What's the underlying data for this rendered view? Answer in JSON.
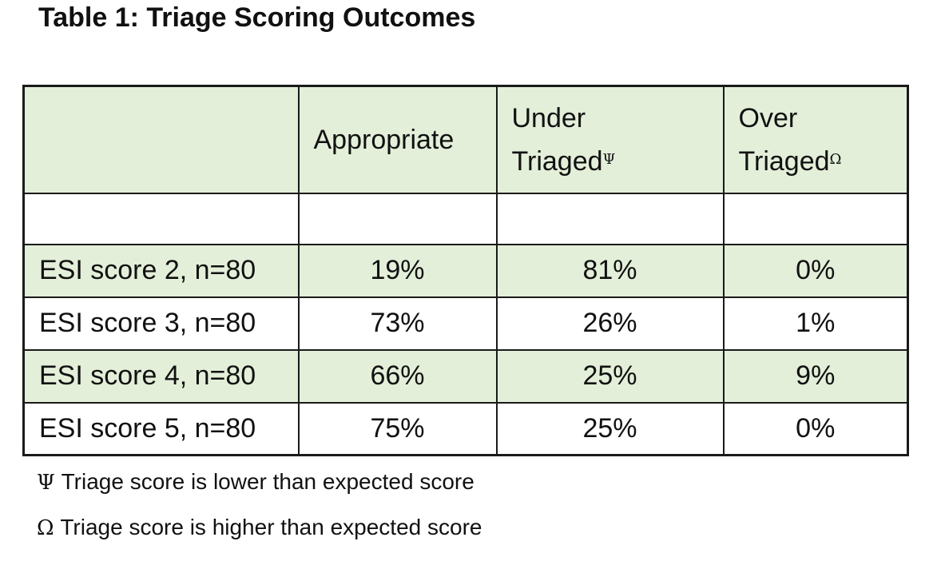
{
  "title": "Table 1: Triage Scoring Outcomes",
  "table": {
    "headers": {
      "col0": "",
      "col1": "Appropriate",
      "col2_line1": "Under",
      "col2_line2": "Triaged",
      "col2_mark": "Ψ",
      "col3_line1": "Over",
      "col3_line2": "Triaged",
      "col3_mark": "Ω"
    },
    "rows": [
      {
        "label": "ESI score 2, n=80",
        "appropriate": "19%",
        "under": "81%",
        "over": "0%"
      },
      {
        "label": "ESI score 3, n=80",
        "appropriate": "73%",
        "under": "26%",
        "over": "1%"
      },
      {
        "label": "ESI score 4, n=80",
        "appropriate": "66%",
        "under": "25%",
        "over": "9%"
      },
      {
        "label": "ESI score 5, n=80",
        "appropriate": "75%",
        "under": "25%",
        "over": "0%"
      }
    ]
  },
  "footnotes": [
    {
      "symbol": "Ψ",
      "text": " Triage score is lower than expected score"
    },
    {
      "symbol": "Ω",
      "text": " Triage score is higher than expected score"
    }
  ],
  "colors": {
    "shade": "#e3efd9",
    "border": "#1a1a1a"
  }
}
